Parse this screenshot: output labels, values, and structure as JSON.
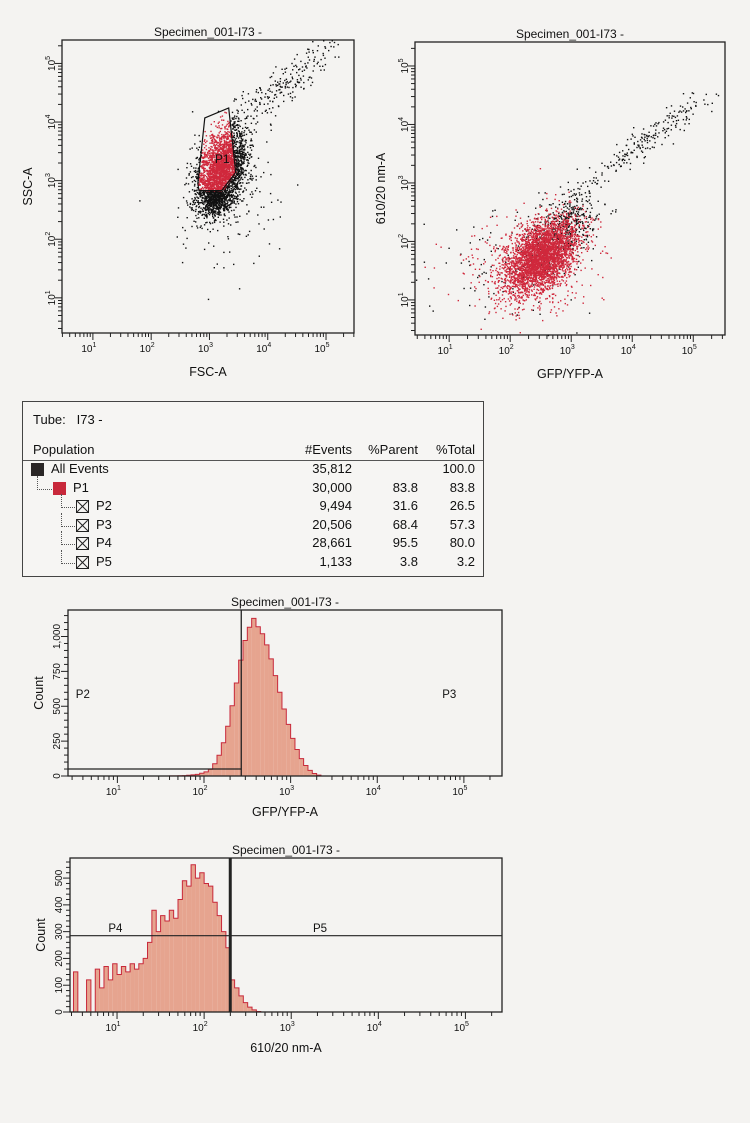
{
  "stats_table": {
    "tube_label": "Tube:",
    "tube_value": "I73 -",
    "headers": {
      "population": "Population",
      "events": "#Events",
      "parent": "%Parent",
      "total": "%Total"
    },
    "rows": [
      {
        "name": "All Events",
        "events": "35,812",
        "parent": "",
        "total": "100.0",
        "swatch": "black",
        "level": 0
      },
      {
        "name": "P1",
        "events": "30,000",
        "parent": "83.8",
        "total": "83.8",
        "swatch": "red",
        "level": 1
      },
      {
        "name": "P2",
        "events": "9,494",
        "parent": "31.6",
        "total": "26.5",
        "swatch": "x",
        "level": 2
      },
      {
        "name": "P3",
        "events": "20,506",
        "parent": "68.4",
        "total": "57.3",
        "swatch": "x",
        "level": 2
      },
      {
        "name": "P4",
        "events": "28,661",
        "parent": "95.5",
        "total": "80.0",
        "swatch": "x",
        "level": 2
      },
      {
        "name": "P5",
        "events": "1,133",
        "parent": "3.8",
        "total": "3.2",
        "swatch": "x",
        "level": 2
      }
    ]
  },
  "chart_data": [
    {
      "type": "scatter",
      "title": "Specimen_001-I73 -",
      "xlabel": "FSC-A",
      "ylabel": "SSC-A",
      "scale": "log10",
      "xlim_log": [
        0.47,
        5.48
      ],
      "ylim_log": [
        0.4,
        5.4
      ],
      "x_ticks_exp": [
        1,
        2,
        3,
        4,
        5
      ],
      "y_ticks_exp": [
        1,
        2,
        3,
        4,
        5
      ],
      "tick_base": "10",
      "colors": {
        "all_events": "#111111",
        "P1": "#d0283c"
      },
      "gate": {
        "name": "P1",
        "vertices_log": [
          [
            2.92,
            4.07
          ],
          [
            3.33,
            4.24
          ],
          [
            3.45,
            3.14
          ],
          [
            3.21,
            2.83
          ],
          [
            2.82,
            2.83
          ],
          [
            2.8,
            2.95
          ]
        ],
        "label_at_log": [
          3.22,
          3.3
        ]
      },
      "populations": [
        {
          "mean_log": [
            3.2,
            3.2
          ],
          "sd_log": [
            0.22,
            0.35
          ],
          "corr": 0.35,
          "n": 2600
        },
        {
          "mean_log": [
            3.1,
            2.7
          ],
          "sd_log": [
            0.15,
            0.15
          ],
          "corr": 0.1,
          "n": 500
        },
        {
          "mean_log": [
            4.2,
            4.6
          ],
          "sd_log": [
            0.55,
            0.45
          ],
          "corr": 0.9,
          "n": 220
        },
        {
          "mean_log": [
            3.4,
            2.6
          ],
          "sd_log": [
            0.45,
            0.6
          ],
          "corr": 0.2,
          "n": 120
        }
      ]
    },
    {
      "type": "scatter",
      "title": "Specimen_001-I73 -",
      "xlabel": "GFP/YFP-A",
      "ylabel": "610/20 nm-A",
      "scale": "log10",
      "xlim_log": [
        0.44,
        5.52
      ],
      "ylim_log": [
        0.4,
        5.41
      ],
      "x_ticks_exp": [
        1,
        2,
        3,
        4,
        5
      ],
      "y_ticks_exp": [
        1,
        2,
        3,
        4,
        5
      ],
      "tick_base": "10",
      "colors": {
        "all_events": "#111111",
        "P1": "#d0283c"
      },
      "populations": [
        {
          "mean_log": [
            2.85,
            2.2
          ],
          "sd_log": [
            0.3,
            0.35
          ],
          "corr": 0.5,
          "n": 500,
          "color_key": "all_events"
        },
        {
          "mean_log": [
            4.2,
            3.7
          ],
          "sd_log": [
            0.55,
            0.45
          ],
          "corr": 0.95,
          "n": 220,
          "color_key": "all_events"
        },
        {
          "mean_log": [
            1.8,
            1.5
          ],
          "sd_log": [
            0.6,
            0.5
          ],
          "corr": 0.0,
          "n": 90,
          "color_key": "all_events"
        },
        {
          "mean_log": [
            2.5,
            1.75
          ],
          "sd_log": [
            0.3,
            0.33
          ],
          "corr": 0.45,
          "n": 3200,
          "color_key": "P1"
        },
        {
          "mean_log": [
            2.3,
            1.6
          ],
          "sd_log": [
            0.55,
            0.4
          ],
          "corr": 0.1,
          "n": 300,
          "color_key": "P1"
        }
      ]
    },
    {
      "type": "bar",
      "subtype": "histogram",
      "title": "Specimen_001-I73 -",
      "xlabel": "GFP/YFP-A",
      "ylabel": "Count",
      "xlim_log": [
        0.43,
        5.44
      ],
      "ylim": [
        0,
        1190
      ],
      "x_ticks_exp": [
        1,
        2,
        3,
        4,
        5
      ],
      "tick_base": "10",
      "y_ticks": [
        0,
        250,
        500,
        750,
        1000
      ],
      "y_tick_labels": [
        "0",
        "250",
        "500",
        "750",
        "1,000"
      ],
      "bin_width_log": 0.05,
      "bins_log_start": [
        1.6,
        1.65,
        1.7,
        1.75,
        1.8,
        1.85,
        1.9,
        1.95,
        2.0,
        2.05,
        2.1,
        2.15,
        2.2,
        2.25,
        2.3,
        2.35,
        2.4,
        2.45,
        2.5,
        2.55,
        2.6,
        2.65,
        2.7,
        2.75,
        2.8,
        2.85,
        2.9,
        2.95,
        3.0,
        3.05,
        3.1,
        3.15,
        3.2,
        3.25,
        3.3
      ],
      "counts": [
        1,
        1,
        2,
        3,
        5,
        8,
        12,
        20,
        30,
        48,
        88,
        149,
        238,
        357,
        504,
        667,
        831,
        971,
        1066,
        1130,
        1070,
        1020,
        940,
        840,
        720,
        600,
        480,
        370,
        270,
        190,
        125,
        75,
        40,
        18,
        6
      ],
      "fill": "#e6a48f",
      "stroke": "#c8283a",
      "gates": [
        {
          "name": "P2",
          "from_log": 0.43,
          "to_log": 2.43,
          "level": 50
        },
        {
          "name": "P3",
          "from_log": 2.43,
          "to_log": 5.44,
          "level": 1190
        }
      ],
      "gate_divider_log": 2.43,
      "gate_labels": [
        {
          "text": "P2",
          "at_log": 0.52,
          "count": 560
        },
        {
          "text": "P3",
          "at_log": 4.75,
          "count": 560
        }
      ]
    },
    {
      "type": "bar",
      "subtype": "histogram",
      "title": "Specimen_001-I73 -",
      "xlabel": "610/20 nm-A",
      "ylabel": "Count",
      "xlim_log": [
        0.46,
        5.42
      ],
      "ylim": [
        0,
        575
      ],
      "x_ticks_exp": [
        1,
        2,
        3,
        4,
        5
      ],
      "tick_base": "10",
      "y_ticks": [
        0,
        100,
        200,
        300,
        400,
        500
      ],
      "y_tick_labels": [
        "0",
        "100",
        "200",
        "300",
        "400",
        "500"
      ],
      "bin_width_log": 0.05,
      "bins_log_start": [
        0.5,
        0.55,
        0.6,
        0.65,
        0.7,
        0.75,
        0.8,
        0.85,
        0.9,
        0.95,
        1.0,
        1.05,
        1.1,
        1.15,
        1.2,
        1.25,
        1.3,
        1.35,
        1.4,
        1.45,
        1.5,
        1.55,
        1.6,
        1.65,
        1.7,
        1.75,
        1.8,
        1.85,
        1.9,
        1.95,
        2.0,
        2.05,
        2.1,
        2.15,
        2.2,
        2.25,
        2.3,
        2.35,
        2.4,
        2.45,
        2.5,
        2.55,
        2.6
      ],
      "counts": [
        150,
        0,
        0,
        120,
        0,
        160,
        90,
        170,
        120,
        180,
        140,
        170,
        150,
        180,
        160,
        180,
        200,
        260,
        380,
        300,
        360,
        340,
        380,
        350,
        420,
        490,
        470,
        550,
        500,
        520,
        480,
        470,
        410,
        360,
        300,
        240,
        120,
        90,
        60,
        35,
        18,
        8,
        2
      ],
      "fill": "#e6a48f",
      "stroke": "#c8283a",
      "gate_divider_log": 2.3,
      "gate_level": 285,
      "gate_labels": [
        {
          "text": "P4",
          "at_log": 0.9,
          "count": 295
        },
        {
          "text": "P5",
          "at_log": 3.25,
          "count": 295
        }
      ]
    }
  ]
}
